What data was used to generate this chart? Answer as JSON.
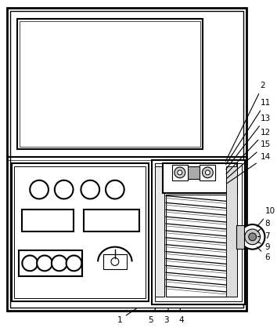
{
  "bg_color": "#ffffff",
  "line_color": "#000000",
  "fig_width": 3.54,
  "fig_height": 4.18,
  "dpi": 100
}
